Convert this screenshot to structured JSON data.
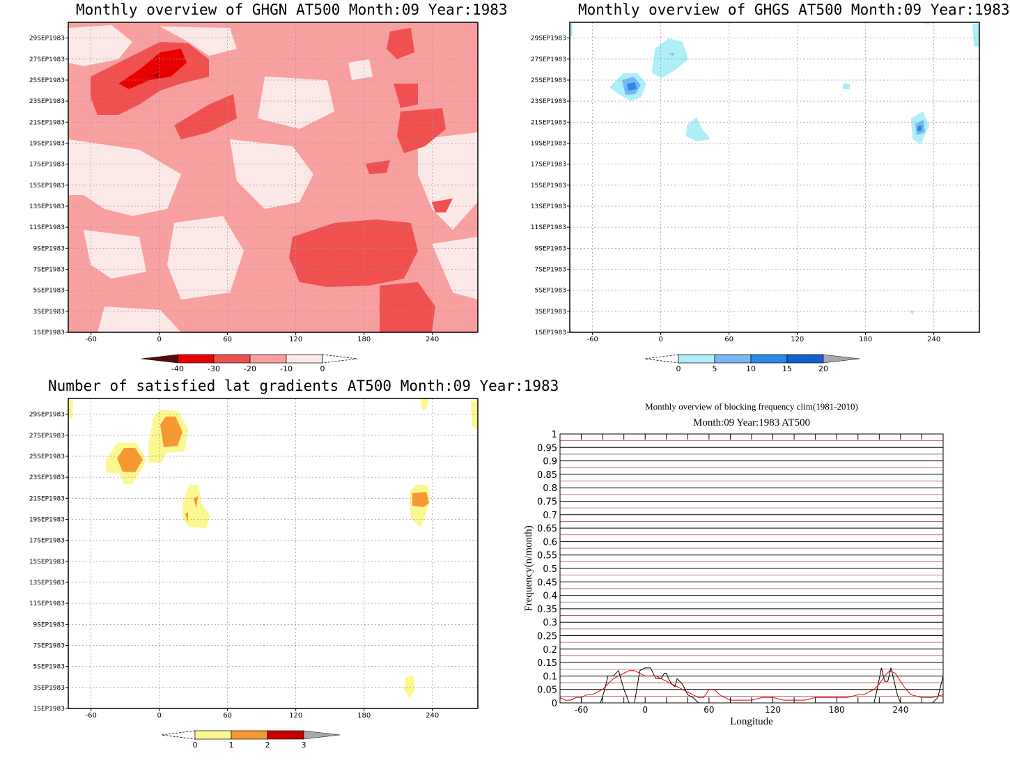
{
  "chart_data": [
    {
      "type": "heatmap",
      "title": "Monthly overview of GHGN AT500 Month:09 Year:1983",
      "x_ticks": [
        "-60",
        "0",
        "60",
        "120",
        "180",
        "240"
      ],
      "y_ticks": [
        "1SEP1983",
        "3SEP1983",
        "5SEP1983",
        "7SEP1983",
        "9SEP1983",
        "11SEP1983",
        "13SEP1983",
        "15SEP1983",
        "17SEP1983",
        "19SEP1983",
        "21SEP1983",
        "23SEP1983",
        "25SEP1983",
        "27SEP1983",
        "29SEP1983"
      ],
      "colorbar": {
        "labels": [
          "-40",
          "-30",
          "-20",
          "-10",
          "0"
        ],
        "colors": [
          "#5a0a0a",
          "#e80000",
          "#f05050",
          "#f8a0a0",
          "#fde8e8"
        ]
      },
      "grid": true
    },
    {
      "type": "heatmap",
      "title": "Monthly overview of GHGS AT500 Month:09 Year:1983",
      "x_ticks": [
        "-60",
        "0",
        "60",
        "120",
        "180",
        "240"
      ],
      "y_ticks": [
        "1SEP1983",
        "3SEP1983",
        "5SEP1983",
        "7SEP1983",
        "9SEP1983",
        "11SEP1983",
        "13SEP1983",
        "15SEP1983",
        "17SEP1983",
        "19SEP1983",
        "21SEP1983",
        "23SEP1983",
        "25SEP1983",
        "27SEP1983",
        "29SEP1983"
      ],
      "colorbar": {
        "labels": [
          "0",
          "5",
          "10",
          "15",
          "20"
        ],
        "colors": [
          "#aeeef8",
          "#78b8f0",
          "#2a88e8",
          "#1060d0",
          "#a8a8a8"
        ]
      },
      "grid": true
    },
    {
      "type": "heatmap",
      "title": "Number of satisfied lat gradients AT500 Month:09 Year:1983",
      "x_ticks": [
        "-60",
        "0",
        "60",
        "120",
        "180",
        "240"
      ],
      "y_ticks": [
        "1SEP1983",
        "3SEP1983",
        "5SEP1983",
        "7SEP1983",
        "9SEP1983",
        "11SEP1983",
        "13SEP1983",
        "15SEP1983",
        "17SEP1983",
        "19SEP1983",
        "21SEP1983",
        "23SEP1983",
        "25SEP1983",
        "27SEP1983",
        "29SEP1983"
      ],
      "colorbar": {
        "labels": [
          "0",
          "1",
          "2",
          "3"
        ],
        "colors": [
          "#fcf890",
          "#f89830",
          "#c80000",
          "#a8a8a8"
        ]
      },
      "grid": true
    },
    {
      "type": "line",
      "title": "Month:09 Year:1983  AT500",
      "subtitle": "Monthly overview of blocking frequency clim(1981-2010)",
      "xlabel": "Longitude",
      "ylabel": "Frequency(n/month)",
      "xlim": [
        -80,
        280
      ],
      "ylim": [
        0,
        1
      ],
      "x_ticks": [
        "-60",
        "0",
        "60",
        "120",
        "180",
        "240"
      ],
      "y_ticks": [
        "0",
        "0.05",
        "0.1",
        "0.15",
        "0.2",
        "0.25",
        "0.3",
        "0.35",
        "0.4",
        "0.45",
        "0.5",
        "0.55",
        "0.6",
        "0.65",
        "0.7",
        "0.75",
        "0.8",
        "0.85",
        "0.9",
        "0.95",
        "1"
      ],
      "series": [
        {
          "color": "#000000",
          "x": [
            -80,
            -60,
            -50,
            -42,
            -38,
            -35,
            -30,
            -25,
            -20,
            -15,
            -10,
            -5,
            0,
            5,
            10,
            15,
            18,
            20,
            22,
            25,
            28,
            30,
            35,
            40,
            45,
            50,
            55,
            60,
            100,
            200,
            210,
            215,
            218,
            222,
            225,
            228,
            231,
            234,
            237,
            240,
            250,
            260,
            270,
            275,
            280
          ],
          "y": [
            0,
            0,
            0,
            0,
            0.05,
            0.1,
            0.1,
            0.12,
            0.05,
            0,
            0,
            0.12,
            0.13,
            0.13,
            0.09,
            0.09,
            0.11,
            0.11,
            0.09,
            0.07,
            0.06,
            0.09,
            0.07,
            0.03,
            0.02,
            0,
            0,
            0,
            0,
            0,
            0,
            0,
            0.05,
            0.13,
            0.08,
            0.08,
            0.13,
            0.08,
            0.03,
            0,
            0,
            0,
            0,
            0.02,
            0.1
          ]
        },
        {
          "color": "#e00000",
          "x": [
            -80,
            -75,
            -70,
            -65,
            -60,
            -55,
            -50,
            -45,
            -40,
            -35,
            -30,
            -25,
            -20,
            -15,
            -10,
            -5,
            0,
            5,
            10,
            15,
            20,
            25,
            30,
            35,
            40,
            45,
            50,
            55,
            60,
            65,
            70,
            75,
            80,
            90,
            100,
            110,
            120,
            130,
            140,
            150,
            160,
            170,
            180,
            190,
            200,
            205,
            210,
            215,
            220,
            225,
            230,
            235,
            240,
            245,
            250,
            260,
            270,
            280
          ],
          "y": [
            0.02,
            0.01,
            0.01,
            0.02,
            0.02,
            0.03,
            0.03,
            0.04,
            0.05,
            0.07,
            0.09,
            0.1,
            0.11,
            0.12,
            0.12,
            0.11,
            0.1,
            0.1,
            0.1,
            0.09,
            0.08,
            0.07,
            0.06,
            0.05,
            0.04,
            0.03,
            0.02,
            0.02,
            0.05,
            0.05,
            0.03,
            0.02,
            0.01,
            0.01,
            0.01,
            0.02,
            0.02,
            0.01,
            0.01,
            0.01,
            0.02,
            0.02,
            0.02,
            0.02,
            0.03,
            0.03,
            0.04,
            0.05,
            0.07,
            0.1,
            0.12,
            0.11,
            0.08,
            0.05,
            0.03,
            0.02,
            0.02,
            0.03
          ]
        }
      ],
      "grid": true
    }
  ]
}
